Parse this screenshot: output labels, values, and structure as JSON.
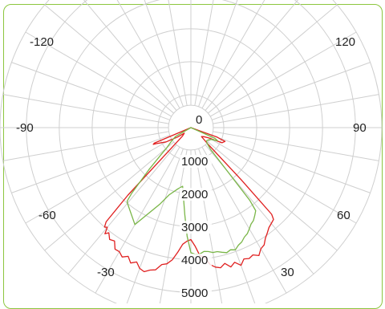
{
  "chart_data": {
    "type": "polar-line",
    "title": "",
    "unit": "",
    "grid": true,
    "legend": "none",
    "angle_labels": [
      {
        "angle": 0,
        "text": "0"
      },
      {
        "angle": 30,
        "text": "30"
      },
      {
        "angle": 60,
        "text": "60"
      },
      {
        "angle": 90,
        "text": "90"
      },
      {
        "angle": 120,
        "text": "120"
      },
      {
        "angle": -30,
        "text": "-30"
      },
      {
        "angle": -60,
        "text": "-60"
      },
      {
        "angle": -90,
        "text": "-90"
      },
      {
        "angle": -120,
        "text": "-120"
      }
    ],
    "radial_ticks": [
      {
        "value": 0,
        "text": "0"
      },
      {
        "value": 1000,
        "text": "1000"
      },
      {
        "value": 2000,
        "text": "2000"
      },
      {
        "value": 3000,
        "text": "3000"
      },
      {
        "value": 4000,
        "text": "4000"
      },
      {
        "value": 5000,
        "text": "5000"
      }
    ],
    "radial_max": 5800,
    "angular_grid_step": 10,
    "series": [
      {
        "color": "#e02020",
        "points": [
          [
            -67.5,
            0
          ],
          [
            -67,
            780
          ],
          [
            -67,
            1210
          ],
          [
            -66,
            1250
          ],
          [
            -65,
            1150
          ],
          [
            -60,
            870
          ],
          [
            -55,
            500
          ],
          [
            -50,
            260
          ],
          [
            -45,
            360
          ],
          [
            -43,
            2800
          ],
          [
            -42,
            3850
          ],
          [
            -41,
            4000
          ],
          [
            -40,
            3950
          ],
          [
            -39,
            4150
          ],
          [
            -38,
            4050
          ],
          [
            -36,
            4200
          ],
          [
            -34,
            4150
          ],
          [
            -32,
            4350
          ],
          [
            -30,
            4350
          ],
          [
            -28,
            4450
          ],
          [
            -26,
            4350
          ],
          [
            -24,
            4500
          ],
          [
            -22,
            4400
          ],
          [
            -20,
            4550
          ],
          [
            -18,
            4600
          ],
          [
            -16,
            4500
          ],
          [
            -14,
            4450
          ],
          [
            -12,
            4250
          ],
          [
            -10,
            4200
          ],
          [
            -8,
            4050
          ],
          [
            -6,
            3800
          ],
          [
            -4,
            3550
          ],
          [
            -2,
            3450
          ],
          [
            0,
            3400
          ],
          [
            2,
            3600
          ],
          [
            4,
            3900
          ],
          [
            6,
            3950
          ],
          [
            8,
            4200
          ],
          [
            10,
            4300
          ],
          [
            12,
            4350
          ],
          [
            14,
            4250
          ],
          [
            16,
            4400
          ],
          [
            18,
            4300
          ],
          [
            20,
            4450
          ],
          [
            22,
            4300
          ],
          [
            24,
            4350
          ],
          [
            26,
            4300
          ],
          [
            28,
            4400
          ],
          [
            30,
            4250
          ],
          [
            32,
            4200
          ],
          [
            34,
            4050
          ],
          [
            36,
            3950
          ],
          [
            38,
            3850
          ],
          [
            40,
            3800
          ],
          [
            42,
            3750
          ],
          [
            43,
            3600
          ],
          [
            44,
            2200
          ],
          [
            46,
            700
          ],
          [
            50,
            420
          ],
          [
            55,
            480
          ],
          [
            60,
            630
          ],
          [
            64,
            1050
          ],
          [
            68,
            1120
          ],
          [
            69,
            950
          ],
          [
            70,
            850
          ],
          [
            71,
            0
          ]
        ]
      },
      {
        "color": "#7ab648",
        "points": [
          [
            -70,
            0
          ],
          [
            -60,
            540
          ],
          [
            -55,
            720
          ],
          [
            -50,
            960
          ],
          [
            -48,
            1200
          ],
          [
            -45,
            1800
          ],
          [
            -42,
            2700
          ],
          [
            -41,
            2950
          ],
          [
            -40,
            3000
          ],
          [
            -30,
            3400
          ],
          [
            -22,
            2500
          ],
          [
            -18,
            2150
          ],
          [
            -12,
            1900
          ],
          [
            -8,
            1800
          ],
          [
            -6,
            2150
          ],
          [
            -4,
            2650
          ],
          [
            -2,
            3300
          ],
          [
            0,
            3800
          ],
          [
            2,
            3850
          ],
          [
            4,
            3850
          ],
          [
            6,
            3780
          ],
          [
            8,
            3800
          ],
          [
            10,
            3850
          ],
          [
            12,
            3850
          ],
          [
            14,
            3900
          ],
          [
            16,
            3950
          ],
          [
            18,
            3900
          ],
          [
            20,
            3950
          ],
          [
            22,
            3850
          ],
          [
            24,
            3800
          ],
          [
            26,
            3700
          ],
          [
            28,
            3650
          ],
          [
            30,
            3550
          ],
          [
            32,
            3450
          ],
          [
            34,
            3400
          ],
          [
            36,
            3300
          ],
          [
            38,
            3200
          ],
          [
            39,
            2850
          ],
          [
            40,
            1700
          ],
          [
            42,
            900
          ],
          [
            46,
            680
          ],
          [
            50,
            620
          ],
          [
            55,
            650
          ],
          [
            60,
            720
          ],
          [
            62,
            820
          ],
          [
            64,
            900
          ],
          [
            66,
            800
          ],
          [
            67,
            0
          ]
        ]
      }
    ]
  }
}
